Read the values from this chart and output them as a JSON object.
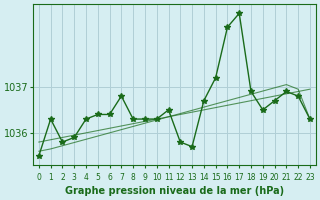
{
  "title": "Graphe pression niveau de la mer (hPa)",
  "x_labels": [
    "0",
    "1",
    "2",
    "3",
    "4",
    "5",
    "6",
    "7",
    "8",
    "9",
    "10",
    "11",
    "12",
    "13",
    "14",
    "15",
    "16",
    "17",
    "18",
    "19",
    "20",
    "21",
    "22",
    "23"
  ],
  "y_ticks": [
    1036,
    1037
  ],
  "ylim": [
    1035.3,
    1038.8
  ],
  "xlim": [
    -0.5,
    23.5
  ],
  "background_color": "#d6eef2",
  "line_color": "#1a6b1a",
  "grid_color": "#b0cfd6",
  "series": {
    "main": [
      1035.5,
      1036.3,
      1035.8,
      1035.9,
      1036.3,
      1036.4,
      1036.4,
      1036.8,
      1036.3,
      1036.3,
      1036.3,
      1036.5,
      1035.8,
      1035.7,
      1036.7,
      1037.2,
      1038.3,
      1038.6,
      1036.9,
      1036.5,
      1036.7,
      1036.9,
      1036.8,
      1036.3
    ],
    "trend1": [
      1035.8,
      1035.85,
      1035.9,
      1035.95,
      1036.0,
      1036.05,
      1036.1,
      1036.15,
      1036.2,
      1036.25,
      1036.3,
      1036.35,
      1036.4,
      1036.45,
      1036.5,
      1036.55,
      1036.6,
      1036.65,
      1036.7,
      1036.75,
      1036.8,
      1036.85,
      1036.9,
      1036.95
    ],
    "trend2": [
      1035.6,
      1035.65,
      1035.72,
      1035.79,
      1035.86,
      1035.93,
      1036.0,
      1036.07,
      1036.14,
      1036.21,
      1036.28,
      1036.35,
      1036.42,
      1036.49,
      1036.56,
      1036.63,
      1036.7,
      1036.77,
      1036.84,
      1036.91,
      1036.98,
      1037.05,
      1036.95,
      1036.3
    ]
  }
}
